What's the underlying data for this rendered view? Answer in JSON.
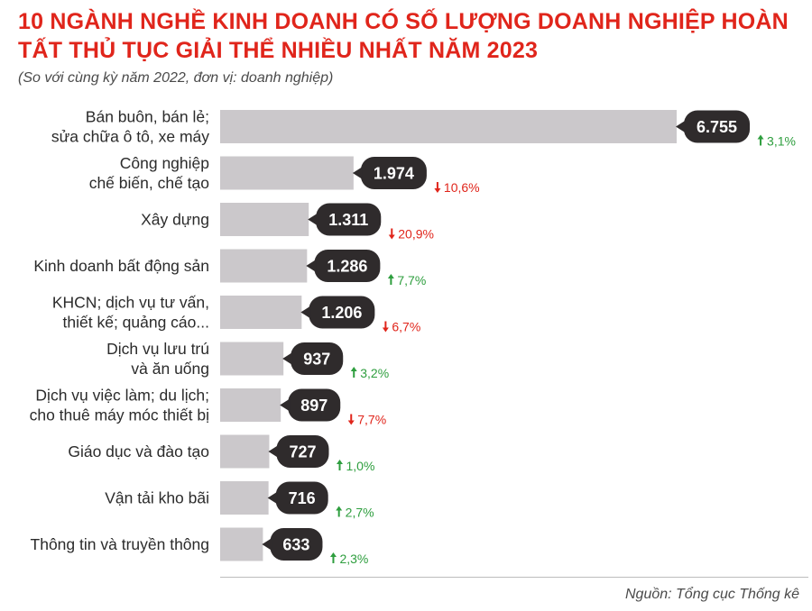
{
  "title": "10 NGÀNH NGHỀ KINH DOANH CÓ SỐ LƯỢNG DOANH NGHIỆP HOÀN TẤT THỦ TỤC GIẢI THỂ NHIỀU NHẤT NĂM 2023",
  "subtitle": "(So với cùng kỳ năm 2022, đơn vị: doanh nghiệp)",
  "source": "Nguồn: Tổng cục Thống kê",
  "colors": {
    "title": "#e0251b",
    "bar": "#cbc8cb",
    "bubble": "#2f2b2c",
    "up": "#2e9e3e",
    "down": "#e0251b"
  },
  "chart_data": {
    "type": "bar",
    "orientation": "horizontal",
    "title": "10 NGÀNH NGHỀ KINH DOANH CÓ SỐ LƯỢNG DOANH NGHIỆP HOÀN TẤT THỦ TỤC GIẢI THỂ NHIỀU NHẤT NĂM 2023",
    "subtitle": "(So với cùng kỳ năm 2022, đơn vị: doanh nghiệp)",
    "xlim": [
      0,
      6755
    ],
    "grid": false,
    "categories": [
      [
        "Bán buôn, bán lẻ;",
        "sửa chữa ô tô, xe máy"
      ],
      [
        "Công nghiệp",
        "chế biến, chế tạo"
      ],
      [
        "Xây dựng"
      ],
      [
        "Kinh doanh bất động sản"
      ],
      [
        "KHCN; dịch vụ tư vấn,",
        "thiết kế; quảng cáo..."
      ],
      [
        "Dịch vụ lưu trú",
        "và ăn uống"
      ],
      [
        "Dịch vụ việc làm; du lịch;",
        "cho thuê máy móc thiết bị"
      ],
      [
        "Giáo dục và đào tạo"
      ],
      [
        "Vận tải kho bãi"
      ],
      [
        "Thông tin và truyền thông"
      ]
    ],
    "values": [
      6755,
      1974,
      1311,
      1286,
      1206,
      937,
      897,
      727,
      716,
      633
    ],
    "value_labels": [
      "6.755",
      "1.974",
      "1.311",
      "1.286",
      "1.206",
      "937",
      "897",
      "727",
      "716",
      "633"
    ],
    "changes": [
      {
        "direction": "up",
        "label": "3,1%"
      },
      {
        "direction": "down",
        "label": "10,6%"
      },
      {
        "direction": "down",
        "label": "20,9%"
      },
      {
        "direction": "up",
        "label": "7,7%"
      },
      {
        "direction": "down",
        "label": "6,7%"
      },
      {
        "direction": "up",
        "label": "3,2%"
      },
      {
        "direction": "down",
        "label": "7,7%"
      },
      {
        "direction": "up",
        "label": "1,0%"
      },
      {
        "direction": "up",
        "label": "2,7%"
      },
      {
        "direction": "up",
        "label": "2,3%"
      }
    ]
  }
}
